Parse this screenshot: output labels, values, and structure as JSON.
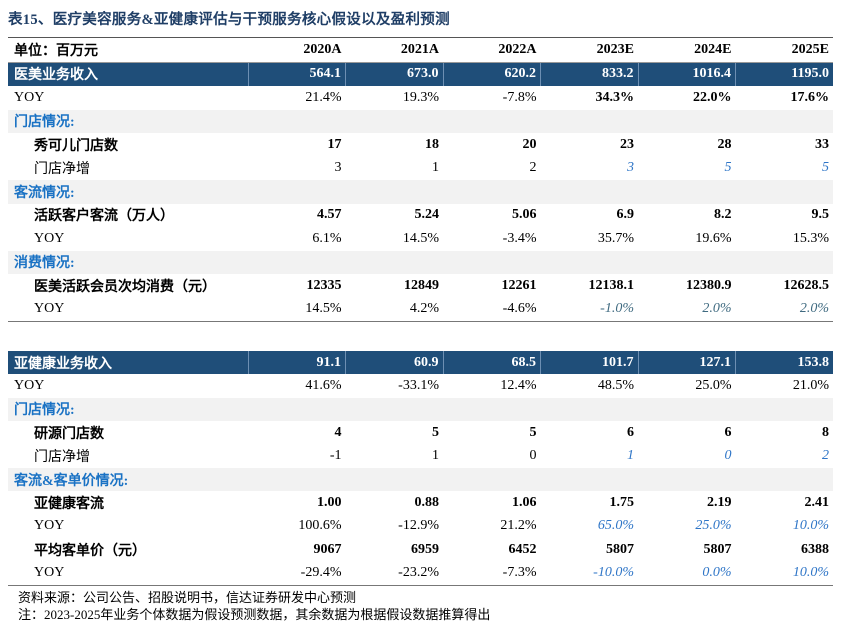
{
  "title": "表15、医疗美容服务&亚健康评估与干预服务核心假设以及盈利预测",
  "table1": [
    {
      "type": "header",
      "cells": [
        "单位：百万元",
        "2020A",
        "2021A",
        "2022A",
        "2023E",
        "2024E",
        "2025E"
      ]
    },
    {
      "type": "blue",
      "cells": [
        "医美业务收入",
        "564.1",
        "673.0",
        "620.2",
        "833.2",
        "1016.4",
        "1195.0"
      ]
    },
    {
      "type": "normal",
      "cells": [
        "YOY",
        "21.4%",
        "19.3%",
        "-7.8%",
        "34.3%",
        "22.0%",
        "17.6%"
      ],
      "bold_cols": [
        4,
        5,
        6
      ]
    },
    {
      "type": "section",
      "cells": [
        "门店情况:",
        "",
        "",
        "",
        "",
        "",
        ""
      ]
    },
    {
      "type": "bold",
      "indent": true,
      "cells": [
        "秀可儿门店数",
        "17",
        "18",
        "20",
        "23",
        "28",
        "33"
      ]
    },
    {
      "type": "normal",
      "indent": true,
      "cells": [
        "门店净增",
        "3",
        "1",
        "2",
        "3",
        "5",
        "5"
      ],
      "italic_cols": [
        4,
        5,
        6
      ]
    },
    {
      "type": "section",
      "cells": [
        "客流情况:",
        "",
        "",
        "",
        "",
        "",
        ""
      ]
    },
    {
      "type": "bold",
      "indent": true,
      "cells": [
        "活跃客户客流（万人）",
        "4.57",
        "5.24",
        "5.06",
        "6.9",
        "8.2",
        "9.5"
      ]
    },
    {
      "type": "normal",
      "indent": true,
      "cells": [
        "YOY",
        "6.1%",
        "14.5%",
        "-3.4%",
        "35.7%",
        "19.6%",
        "15.3%"
      ]
    },
    {
      "type": "section",
      "cells": [
        "消费情况:",
        "",
        "",
        "",
        "",
        "",
        ""
      ]
    },
    {
      "type": "bold",
      "indent": true,
      "cells": [
        "医美活跃会员次均消费（元）",
        "12335",
        "12849",
        "12261",
        "12138.1",
        "12380.9",
        "12628.5"
      ]
    },
    {
      "type": "normal",
      "indent": true,
      "cells": [
        "YOY",
        "14.5%",
        "4.2%",
        "-4.6%",
        "-1.0%",
        "2.0%",
        "2.0%"
      ],
      "italic2_cols": [
        4,
        5,
        6
      ]
    }
  ],
  "table2": [
    {
      "type": "blue",
      "cells": [
        "亚健康业务收入",
        "91.1",
        "60.9",
        "68.5",
        "101.7",
        "127.1",
        "153.8"
      ]
    },
    {
      "type": "normal",
      "cells": [
        "YOY",
        "41.6%",
        "-33.1%",
        "12.4%",
        "48.5%",
        "25.0%",
        "21.0%"
      ]
    },
    {
      "type": "section",
      "cells": [
        "门店情况:",
        "",
        "",
        "",
        "",
        "",
        ""
      ]
    },
    {
      "type": "bold",
      "indent": true,
      "cells": [
        "研源门店数",
        "4",
        "5",
        "5",
        "6",
        "6",
        "8"
      ]
    },
    {
      "type": "normal",
      "indent": true,
      "cells": [
        "门店净增",
        "-1",
        "1",
        "0",
        "1",
        "0",
        "2"
      ],
      "italic_cols": [
        4,
        5,
        6
      ]
    },
    {
      "type": "section",
      "cells": [
        "客流&客单价情况:",
        "",
        "",
        "",
        "",
        "",
        ""
      ]
    },
    {
      "type": "bold",
      "indent": true,
      "cells": [
        "亚健康客流",
        "1.00",
        "0.88",
        "1.06",
        "1.75",
        "2.19",
        "2.41"
      ]
    },
    {
      "type": "normal",
      "indent": true,
      "cells": [
        "YOY",
        "100.6%",
        "-12.9%",
        "21.2%",
        "65.0%",
        "25.0%",
        "10.0%"
      ],
      "italic_cols": [
        4,
        5,
        6
      ]
    },
    {
      "type": "bold",
      "indent": true,
      "cells": [
        "平均客单价（元）",
        "9067",
        "6959",
        "6452",
        "5807",
        "5807",
        "6388"
      ]
    },
    {
      "type": "normal",
      "indent": true,
      "cells": [
        "YOY",
        "-29.4%",
        "-23.2%",
        "-7.3%",
        "-10.0%",
        "0.0%",
        "10.0%"
      ],
      "italic_cols": [
        4,
        5,
        6
      ]
    }
  ],
  "source": "资料来源：公司公告、招股说明书，信达证券研发中心预测",
  "note": "注：2023-2025年业务个体数据为假设预测数据，其余数据为根据假设数据推算得出",
  "colors": {
    "header_blue": "#1f4e79",
    "section_text": "#1a72c4",
    "estimate_italic": "#2e75c7",
    "section_bg": "#f2f2f2"
  }
}
